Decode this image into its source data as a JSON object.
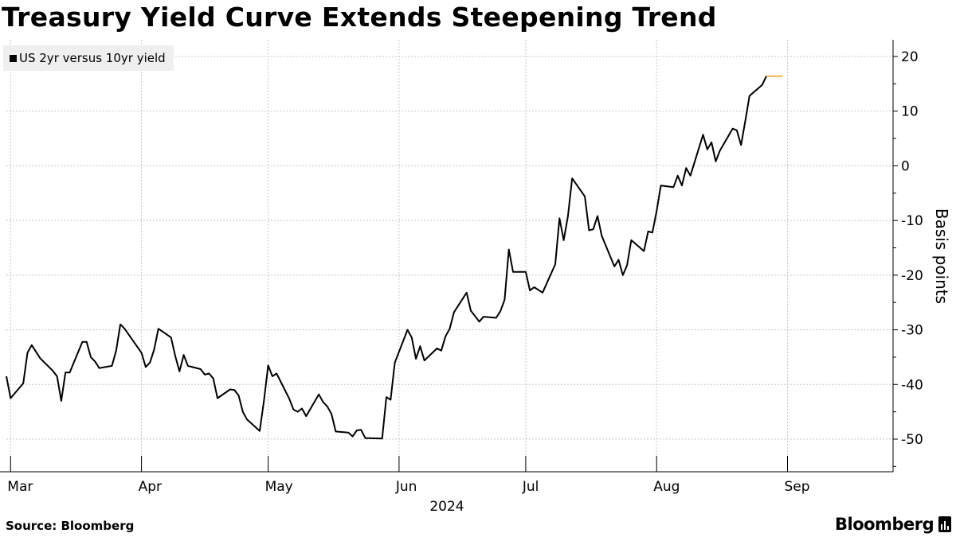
{
  "title": "Treasury Yield Curve Extends Steepening Trend",
  "source": "Source: Bloomberg",
  "brand": "Bloomberg",
  "colors": {
    "line": "#000000",
    "last_marker": "#e8a317",
    "grid": "#c8c8c8",
    "legend_bg": "#efefef"
  },
  "chart_data": {
    "type": "line",
    "title": "Treasury Yield Curve Extends Steepening Trend",
    "ylabel": "Basis points",
    "xlabel": "2024",
    "ylim": [
      -55,
      23
    ],
    "y_ticks": [
      20,
      10,
      0,
      -10,
      -20,
      -30,
      -40,
      -50
    ],
    "y_tick_labels": [
      "20",
      "10",
      "0",
      "-10",
      "-20",
      "-30",
      "-40",
      "-50"
    ],
    "y_axis_side": "right",
    "grid": true,
    "legend": {
      "position": "top-left",
      "entries": [
        "US 2yr versus 10yr yield"
      ]
    },
    "x_range": [
      "2024-02-29",
      "2024-09-26"
    ],
    "month_ticks": [
      {
        "label": "Mar",
        "date": "2024-03-01"
      },
      {
        "label": "Apr",
        "date": "2024-04-01"
      },
      {
        "label": "May",
        "date": "2024-05-01"
      },
      {
        "label": "Jun",
        "date": "2024-06-01"
      },
      {
        "label": "Jul",
        "date": "2024-07-01"
      },
      {
        "label": "Aug",
        "date": "2024-08-01"
      },
      {
        "label": "Sep",
        "date": "2024-09-01"
      }
    ],
    "year_label": "2024",
    "series": [
      {
        "name": "US 2yr versus 10yr yield",
        "points": [
          [
            "2024-02-29",
            -38.5
          ],
          [
            "2024-03-01",
            -42.5
          ],
          [
            "2024-03-04",
            -39.8
          ],
          [
            "2024-03-05",
            -34.2
          ],
          [
            "2024-03-06",
            -32.8
          ],
          [
            "2024-03-07",
            -34.0
          ],
          [
            "2024-03-08",
            -35.2
          ],
          [
            "2024-03-11",
            -37.5
          ],
          [
            "2024-03-12",
            -38.5
          ],
          [
            "2024-03-13",
            -43.0
          ],
          [
            "2024-03-14",
            -37.8
          ],
          [
            "2024-03-15",
            -37.8
          ],
          [
            "2024-03-18",
            -32.2
          ],
          [
            "2024-03-19",
            -32.2
          ],
          [
            "2024-03-20",
            -35.0
          ],
          [
            "2024-03-21",
            -35.8
          ],
          [
            "2024-03-22",
            -37.0
          ],
          [
            "2024-03-25",
            -36.6
          ],
          [
            "2024-03-26",
            -33.8
          ],
          [
            "2024-03-27",
            -29.0
          ],
          [
            "2024-03-28",
            -29.8
          ],
          [
            "2024-04-01",
            -34.2
          ],
          [
            "2024-04-02",
            -36.8
          ],
          [
            "2024-04-03",
            -36.0
          ],
          [
            "2024-04-04",
            -33.6
          ],
          [
            "2024-04-05",
            -29.8
          ],
          [
            "2024-04-08",
            -31.4
          ],
          [
            "2024-04-09",
            -34.8
          ],
          [
            "2024-04-10",
            -37.6
          ],
          [
            "2024-04-11",
            -34.6
          ],
          [
            "2024-04-12",
            -36.6
          ],
          [
            "2024-04-15",
            -37.2
          ],
          [
            "2024-04-16",
            -38.2
          ],
          [
            "2024-04-17",
            -38.0
          ],
          [
            "2024-04-18",
            -38.9
          ],
          [
            "2024-04-19",
            -42.5
          ],
          [
            "2024-04-22",
            -40.9
          ],
          [
            "2024-04-23",
            -41.0
          ],
          [
            "2024-04-24",
            -42.0
          ],
          [
            "2024-04-25",
            -45.0
          ],
          [
            "2024-04-26",
            -46.4
          ],
          [
            "2024-04-29",
            -48.5
          ],
          [
            "2024-04-30",
            -43.0
          ],
          [
            "2024-05-01",
            -36.5
          ],
          [
            "2024-05-02",
            -38.5
          ],
          [
            "2024-05-03",
            -38.0
          ],
          [
            "2024-05-06",
            -42.6
          ],
          [
            "2024-05-07",
            -44.6
          ],
          [
            "2024-05-08",
            -45.0
          ],
          [
            "2024-05-09",
            -44.4
          ],
          [
            "2024-05-10",
            -45.8
          ],
          [
            "2024-05-13",
            -41.8
          ],
          [
            "2024-05-14",
            -43.2
          ],
          [
            "2024-05-15",
            -44.0
          ],
          [
            "2024-05-16",
            -45.4
          ],
          [
            "2024-05-17",
            -48.6
          ],
          [
            "2024-05-20",
            -48.8
          ],
          [
            "2024-05-21",
            -49.5
          ],
          [
            "2024-05-22",
            -48.4
          ],
          [
            "2024-05-23",
            -48.3
          ],
          [
            "2024-05-24",
            -49.8
          ],
          [
            "2024-05-28",
            -49.9
          ],
          [
            "2024-05-29",
            -42.3
          ],
          [
            "2024-05-30",
            -42.8
          ],
          [
            "2024-05-31",
            -36.0
          ],
          [
            "2024-06-03",
            -30.0
          ],
          [
            "2024-06-04",
            -31.4
          ],
          [
            "2024-06-05",
            -35.3
          ],
          [
            "2024-06-06",
            -33.0
          ],
          [
            "2024-06-07",
            -35.6
          ],
          [
            "2024-06-10",
            -33.4
          ],
          [
            "2024-06-11",
            -33.8
          ],
          [
            "2024-06-12",
            -31.2
          ],
          [
            "2024-06-13",
            -29.8
          ],
          [
            "2024-06-14",
            -26.8
          ],
          [
            "2024-06-17",
            -23.2
          ],
          [
            "2024-06-18",
            -26.5
          ],
          [
            "2024-06-20",
            -28.5
          ],
          [
            "2024-06-21",
            -27.6
          ],
          [
            "2024-06-24",
            -27.8
          ],
          [
            "2024-06-25",
            -26.6
          ],
          [
            "2024-06-26",
            -24.5
          ],
          [
            "2024-06-27",
            -15.3
          ],
          [
            "2024-06-28",
            -19.4
          ],
          [
            "2024-07-01",
            -19.4
          ],
          [
            "2024-07-02",
            -22.8
          ],
          [
            "2024-07-03",
            -22.2
          ],
          [
            "2024-07-05",
            -23.2
          ],
          [
            "2024-07-08",
            -18.0
          ],
          [
            "2024-07-09",
            -9.6
          ],
          [
            "2024-07-10",
            -13.6
          ],
          [
            "2024-07-11",
            -9.2
          ],
          [
            "2024-07-12",
            -2.3
          ],
          [
            "2024-07-15",
            -5.6
          ],
          [
            "2024-07-16",
            -11.8
          ],
          [
            "2024-07-17",
            -11.6
          ],
          [
            "2024-07-18",
            -9.2
          ],
          [
            "2024-07-19",
            -12.8
          ],
          [
            "2024-07-22",
            -18.4
          ],
          [
            "2024-07-23",
            -17.2
          ],
          [
            "2024-07-24",
            -20.0
          ],
          [
            "2024-07-25",
            -18.2
          ],
          [
            "2024-07-26",
            -13.6
          ],
          [
            "2024-07-29",
            -15.6
          ],
          [
            "2024-07-30",
            -12.0
          ],
          [
            "2024-07-31",
            -12.2
          ],
          [
            "2024-08-01",
            -8.3
          ],
          [
            "2024-08-02",
            -3.6
          ],
          [
            "2024-08-05",
            -3.9
          ],
          [
            "2024-08-06",
            -1.8
          ],
          [
            "2024-08-07",
            -3.6
          ],
          [
            "2024-08-08",
            -0.4
          ],
          [
            "2024-08-09",
            -1.8
          ],
          [
            "2024-08-12",
            5.7
          ],
          [
            "2024-08-13",
            3.0
          ],
          [
            "2024-08-14",
            4.3
          ],
          [
            "2024-08-15",
            0.8
          ],
          [
            "2024-08-16",
            2.8
          ],
          [
            "2024-08-19",
            6.8
          ],
          [
            "2024-08-20",
            6.5
          ],
          [
            "2024-08-21",
            3.8
          ],
          [
            "2024-08-22",
            8.2
          ],
          [
            "2024-08-23",
            12.8
          ],
          [
            "2024-08-26",
            14.8
          ],
          [
            "2024-08-27",
            16.4
          ]
        ]
      }
    ],
    "last_value": 16.4,
    "last_value_marker_dates": [
      "2024-08-27",
      "2024-08-29"
    ]
  }
}
